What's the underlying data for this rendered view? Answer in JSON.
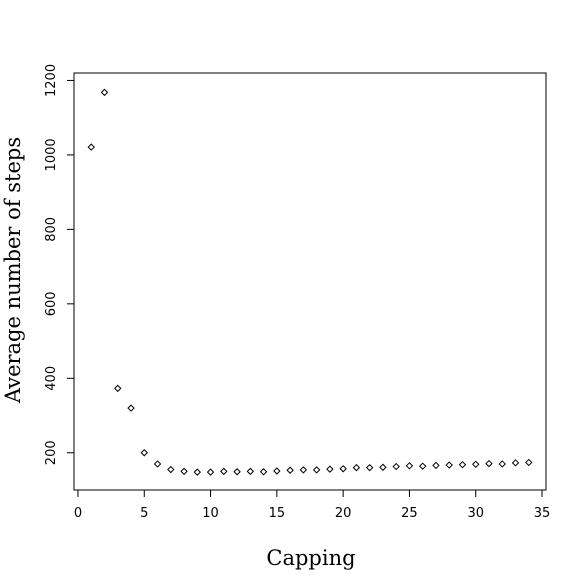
{
  "chart_data": {
    "type": "scatter",
    "title": "",
    "xlabel": "Capping",
    "ylabel": "Average number of steps",
    "xlim": [
      -0.3,
      35.3
    ],
    "ylim": [
      100,
      1220
    ],
    "x_ticks": [
      0,
      5,
      10,
      15,
      20,
      25,
      30,
      35
    ],
    "x_tick_labels": [
      "0",
      "5",
      "10",
      "15",
      "20",
      "25",
      "30",
      "35"
    ],
    "y_ticks": [
      200,
      400,
      600,
      800,
      1000,
      1200
    ],
    "y_tick_labels": [
      "200",
      "400",
      "600",
      "800",
      "1000",
      "1200"
    ],
    "grid": false,
    "legend": "none",
    "marker": "open-diamond",
    "series": [
      {
        "x": [
          1,
          2,
          3,
          4,
          5,
          6,
          7,
          8,
          9,
          10,
          11,
          12,
          13,
          14,
          15,
          16,
          17,
          18,
          19,
          20,
          21,
          22,
          23,
          24,
          25,
          26,
          27,
          28,
          29,
          30,
          31,
          32,
          33,
          34
        ],
        "y": [
          1021,
          1168,
          373,
          320,
          200,
          170,
          155,
          150,
          148,
          148,
          150,
          149,
          150,
          149,
          151,
          153,
          154,
          154,
          156,
          157,
          160,
          160,
          161,
          163,
          165,
          164,
          166,
          167,
          168,
          169,
          171,
          170,
          173,
          174
        ]
      }
    ]
  }
}
